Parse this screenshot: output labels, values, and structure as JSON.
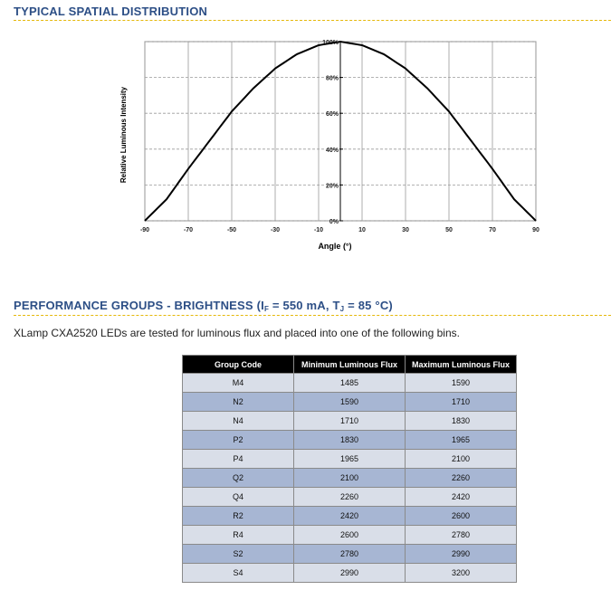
{
  "sections": {
    "spatial_heading": "TYPICAL SPATIAL DISTRIBUTION",
    "performance_heading_pre": "PERFORMANCE GROUPS - BRIGHTNESS (I",
    "performance_sub_f": "F",
    "performance_mid": " = 550 mA, T",
    "performance_sub_j": "J",
    "performance_post": " = 85 °C)",
    "intro": "XLamp CXA2520 LEDs are tested for luminous flux and placed into one of the following bins."
  },
  "chart_data": {
    "type": "line",
    "xlabel": "Angle (°)",
    "ylabel": "Relative Luminous Intensity",
    "xlim": [
      -90,
      90
    ],
    "ylim": [
      0,
      100
    ],
    "x_ticks": [
      -90,
      -70,
      -50,
      -30,
      -10,
      10,
      30,
      50,
      70,
      90
    ],
    "x_tick_labels": [
      "-90",
      "-70",
      "-50",
      "-30",
      "-10",
      "10",
      "30",
      "50",
      "70",
      "90"
    ],
    "y_ticks": [
      0,
      20,
      40,
      60,
      80,
      100
    ],
    "y_tick_labels": [
      "0%",
      "20%",
      "40%",
      "60%",
      "80%",
      "100%"
    ],
    "grid": true,
    "series": [
      {
        "x": [
          -90,
          -80,
          -70,
          -60,
          -50,
          -40,
          -30,
          -20,
          -10,
          0,
          10,
          20,
          30,
          40,
          50,
          60,
          70,
          80,
          90
        ],
        "y": [
          0,
          12,
          29,
          45,
          61,
          74,
          85,
          93,
          98,
          100,
          98,
          93,
          85,
          74,
          61,
          45,
          29,
          12,
          0
        ]
      }
    ]
  },
  "table": {
    "headers": [
      "Group Code",
      "Minimum Luminous Flux",
      "Maximum Luminous Flux"
    ],
    "rows": [
      [
        "M4",
        "1485",
        "1590"
      ],
      [
        "N2",
        "1590",
        "1710"
      ],
      [
        "N4",
        "1710",
        "1830"
      ],
      [
        "P2",
        "1830",
        "1965"
      ],
      [
        "P4",
        "1965",
        "2100"
      ],
      [
        "Q2",
        "2100",
        "2260"
      ],
      [
        "Q4",
        "2260",
        "2420"
      ],
      [
        "R2",
        "2420",
        "2600"
      ],
      [
        "R4",
        "2600",
        "2780"
      ],
      [
        "S2",
        "2780",
        "2990"
      ],
      [
        "S4",
        "2990",
        "3200"
      ]
    ]
  }
}
